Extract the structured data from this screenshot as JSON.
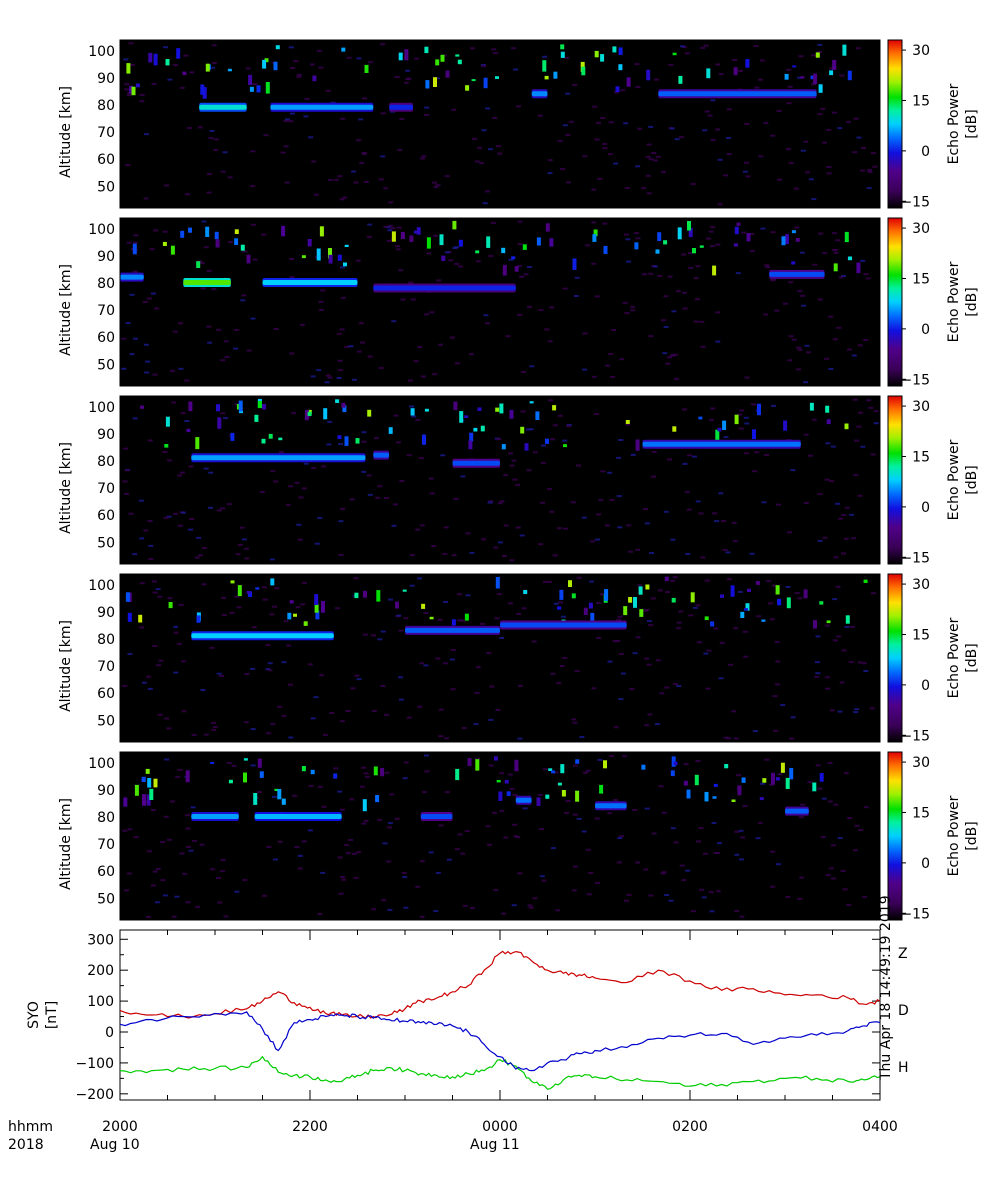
{
  "chart_data": [
    {
      "type": "heatmap",
      "panel": 1,
      "ylabel": "Altitude [km]",
      "yticks": [
        50,
        60,
        70,
        80,
        90,
        100
      ],
      "ylim": [
        42,
        104
      ],
      "xlim": [
        0,
        480
      ],
      "colorbar": {
        "label": "Echo Power [dB]",
        "ticks": [
          -15,
          0,
          15,
          30
        ],
        "range": [
          -17,
          33
        ]
      },
      "echo_layers": [
        {
          "t_start": 50,
          "t_end": 80,
          "altitude": 79,
          "power": 10
        },
        {
          "t_start": 95,
          "t_end": 160,
          "altitude": 79,
          "power": 6
        },
        {
          "t_start": 170,
          "t_end": 185,
          "altitude": 79,
          "power": 0
        },
        {
          "t_start": 260,
          "t_end": 270,
          "altitude": 84,
          "power": 5
        },
        {
          "t_start": 340,
          "t_end": 440,
          "altitude": 84,
          "power": 3
        }
      ]
    },
    {
      "type": "heatmap",
      "panel": 2,
      "ylabel": "Altitude [km]",
      "yticks": [
        50,
        60,
        70,
        80,
        90,
        100
      ],
      "ylim": [
        42,
        104
      ],
      "xlim": [
        0,
        480
      ],
      "colorbar": {
        "label": "Echo Power [dB]",
        "ticks": [
          -15,
          0,
          15,
          30
        ],
        "range": [
          -17,
          33
        ]
      },
      "echo_layers": [
        {
          "t_start": 0,
          "t_end": 15,
          "altitude": 82,
          "power": 5
        },
        {
          "t_start": 40,
          "t_end": 70,
          "altitude": 80,
          "power": 18
        },
        {
          "t_start": 90,
          "t_end": 150,
          "altitude": 80,
          "power": 8
        },
        {
          "t_start": 160,
          "t_end": 250,
          "altitude": 78,
          "power": 0
        },
        {
          "t_start": 410,
          "t_end": 445,
          "altitude": 83,
          "power": 2
        }
      ]
    },
    {
      "type": "heatmap",
      "panel": 3,
      "ylabel": "Altitude [km]",
      "yticks": [
        50,
        60,
        70,
        80,
        90,
        100
      ],
      "ylim": [
        42,
        104
      ],
      "xlim": [
        0,
        480
      ],
      "colorbar": {
        "label": "Echo Power [dB]",
        "ticks": [
          -15,
          0,
          15,
          30
        ],
        "range": [
          -17,
          33
        ]
      },
      "echo_layers": [
        {
          "t_start": 45,
          "t_end": 155,
          "altitude": 81,
          "power": 6
        },
        {
          "t_start": 160,
          "t_end": 170,
          "altitude": 82,
          "power": 3
        },
        {
          "t_start": 210,
          "t_end": 240,
          "altitude": 79,
          "power": 2
        },
        {
          "t_start": 330,
          "t_end": 430,
          "altitude": 86,
          "power": 4
        }
      ]
    },
    {
      "type": "heatmap",
      "panel": 4,
      "ylabel": "Altitude [km]",
      "yticks": [
        50,
        60,
        70,
        80,
        90,
        100
      ],
      "ylim": [
        42,
        104
      ],
      "xlim": [
        0,
        480
      ],
      "colorbar": {
        "label": "Echo Power [dB]",
        "ticks": [
          -15,
          0,
          15,
          30
        ],
        "range": [
          -17,
          33
        ]
      },
      "echo_layers": [
        {
          "t_start": 45,
          "t_end": 135,
          "altitude": 81,
          "power": 8
        },
        {
          "t_start": 180,
          "t_end": 240,
          "altitude": 83,
          "power": 3
        },
        {
          "t_start": 240,
          "t_end": 320,
          "altitude": 85,
          "power": 2
        }
      ]
    },
    {
      "type": "heatmap",
      "panel": 5,
      "ylabel": "Altitude [km]",
      "yticks": [
        50,
        60,
        70,
        80,
        90,
        100
      ],
      "ylim": [
        42,
        104
      ],
      "xlim": [
        0,
        480
      ],
      "colorbar": {
        "label": "Echo Power [dB]",
        "ticks": [
          -15,
          0,
          15,
          30
        ],
        "range": [
          -17,
          33
        ]
      },
      "echo_layers": [
        {
          "t_start": 45,
          "t_end": 75,
          "altitude": 80,
          "power": 6
        },
        {
          "t_start": 85,
          "t_end": 140,
          "altitude": 80,
          "power": 7
        },
        {
          "t_start": 190,
          "t_end": 210,
          "altitude": 80,
          "power": 2
        },
        {
          "t_start": 250,
          "t_end": 260,
          "altitude": 86,
          "power": 4
        },
        {
          "t_start": 300,
          "t_end": 320,
          "altitude": 84,
          "power": 4
        },
        {
          "t_start": 420,
          "t_end": 435,
          "altitude": 82,
          "power": 3
        }
      ]
    },
    {
      "type": "line",
      "panel": 6,
      "ylabel": "SYO\n[nT]",
      "yticks": [
        -200,
        -100,
        0,
        100,
        200,
        300
      ],
      "ylim": [
        -220,
        330
      ],
      "xlim": [
        0,
        480
      ],
      "x": [
        0,
        20,
        40,
        60,
        80,
        90,
        100,
        110,
        120,
        130,
        140,
        150,
        160,
        170,
        180,
        190,
        200,
        210,
        220,
        230,
        240,
        250,
        260,
        270,
        280,
        290,
        300,
        320,
        340,
        360,
        380,
        400,
        420,
        440,
        460,
        470,
        480
      ],
      "series": [
        {
          "name": "Z",
          "color": "#cc0000",
          "values": [
            70,
            55,
            50,
            60,
            75,
            100,
            130,
            95,
            80,
            60,
            55,
            50,
            50,
            55,
            75,
            100,
            110,
            130,
            150,
            200,
            255,
            260,
            230,
            200,
            190,
            185,
            175,
            160,
            200,
            165,
            135,
            140,
            120,
            120,
            110,
            90,
            100
          ]
        },
        {
          "name": "D",
          "color": "#00cc00",
          "values": [
            -125,
            -125,
            -120,
            -118,
            -115,
            -80,
            -130,
            -140,
            -145,
            -155,
            -160,
            -140,
            -125,
            -115,
            -125,
            -135,
            -140,
            -145,
            -135,
            -125,
            -90,
            -110,
            -160,
            -185,
            -155,
            -140,
            -145,
            -155,
            -160,
            -175,
            -170,
            -160,
            -150,
            -150,
            -160,
            -155,
            -145
          ]
        },
        {
          "name": "H",
          "color": "#0000cc",
          "values": [
            25,
            40,
            50,
            60,
            65,
            10,
            -60,
            30,
            40,
            50,
            55,
            50,
            45,
            40,
            35,
            30,
            25,
            20,
            0,
            -40,
            -80,
            -120,
            -125,
            -100,
            -90,
            -70,
            -60,
            -50,
            -20,
            -10,
            -5,
            -40,
            -20,
            -10,
            5,
            20,
            30
          ]
        }
      ]
    }
  ],
  "time_axis": {
    "row1_label": "hhmm",
    "row2_label": "2018",
    "tick_labels": [
      "2000",
      "2200",
      "0000",
      "0200",
      "0400"
    ],
    "date_labels": [
      "Aug 10",
      "Aug 11"
    ]
  },
  "timestamp": "Thu Apr 18 14:49:19 2019"
}
